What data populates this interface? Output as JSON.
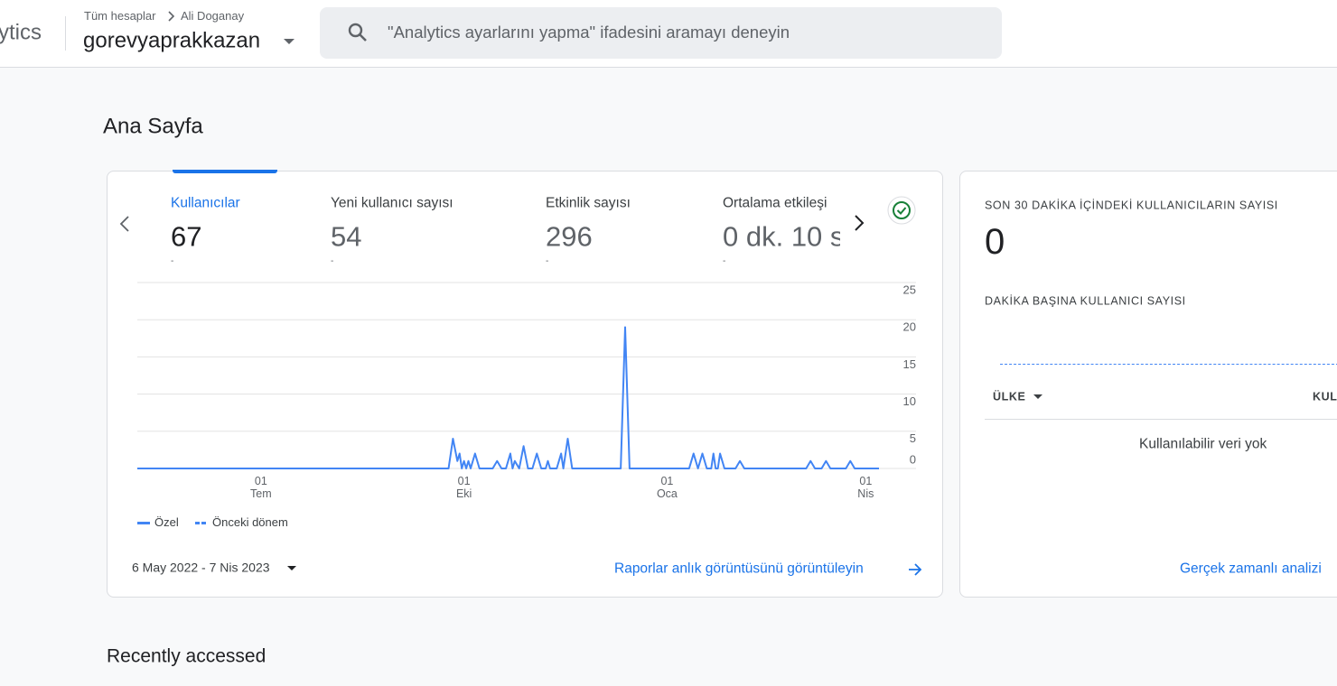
{
  "header": {
    "product": "ytics",
    "breadcrumb": [
      "Tüm hesaplar",
      "Ali Doganay"
    ],
    "property": "gorevyaprakkazan",
    "search_placeholder": "\"Analytics ayarlarını yapma\" ifadesini aramayı deneyin"
  },
  "page_title": "Ana Sayfa",
  "metrics": [
    {
      "label": "Kullanıcılar",
      "value": 67,
      "change": "-"
    },
    {
      "label": "Yeni kullanıcı sayısı",
      "value": 54,
      "change": "-"
    },
    {
      "label": "Etkinlik sayısı",
      "value": 296,
      "change": "-"
    },
    {
      "label": "Ortalama etkileşi",
      "value": "0 dk. 10 s",
      "change": "-"
    }
  ],
  "chart_data": {
    "type": "line",
    "x": [
      0,
      141,
      143,
      145,
      146,
      147,
      148,
      149,
      150,
      151,
      153,
      155,
      161,
      163,
      165,
      167,
      169,
      170,
      171,
      173,
      175,
      177,
      179,
      181,
      183,
      185,
      186,
      187,
      190,
      192,
      193,
      195,
      197,
      219,
      221,
      223,
      250,
      252,
      254,
      256,
      258,
      260,
      261,
      262,
      263,
      264,
      266,
      271,
      273,
      275,
      303,
      305,
      307,
      310,
      312,
      314,
      321,
      323,
      325,
      336
    ],
    "xlim": [
      0,
      336
    ],
    "xticks": [
      {
        "value": 56,
        "label": "01\nTem"
      },
      {
        "value": 148,
        "label": "01\nEki"
      },
      {
        "value": 240,
        "label": "01\nOca"
      },
      {
        "value": 330,
        "label": "01\nNis"
      }
    ],
    "ylim": [
      0,
      25
    ],
    "yticks": [
      0,
      5,
      10,
      15,
      20,
      25
    ],
    "grid": true,
    "series": [
      {
        "name": "Özel",
        "color": "#4285f4",
        "values": [
          0,
          0,
          4,
          1,
          2,
          0,
          1,
          0,
          1,
          0,
          2,
          0,
          0,
          1,
          0,
          0,
          2,
          0,
          1,
          0,
          3,
          0,
          0,
          2,
          0,
          0,
          1,
          0,
          0,
          2,
          0,
          4,
          0,
          0,
          19,
          0,
          0,
          2,
          0,
          2,
          0,
          0,
          2,
          0,
          0,
          2,
          0,
          0,
          1,
          0,
          0,
          1,
          0,
          0,
          1,
          0,
          0,
          1,
          0,
          0
        ]
      },
      {
        "name": "Önceki dönem",
        "color": "#4285f4",
        "dash": true
      }
    ]
  },
  "date_range": "6 May 2022 - 7 Nis 2023",
  "report_link": "Raporlar anlık görüntüsünü görüntüleyin",
  "realtime": {
    "title": "SON 30 DAKİKA İÇİNDEKİ KULLANICILARIN SAYISI",
    "value": 0,
    "per_minute_title": "DAKİKA BAŞINA KULLANICI SAYISI",
    "table_headers": [
      "ÜLKE",
      "KUL"
    ],
    "empty": "Kullanılabilir veri yok",
    "link": "Gerçek zamanlı analizi"
  },
  "recent_title": "Recently accessed"
}
